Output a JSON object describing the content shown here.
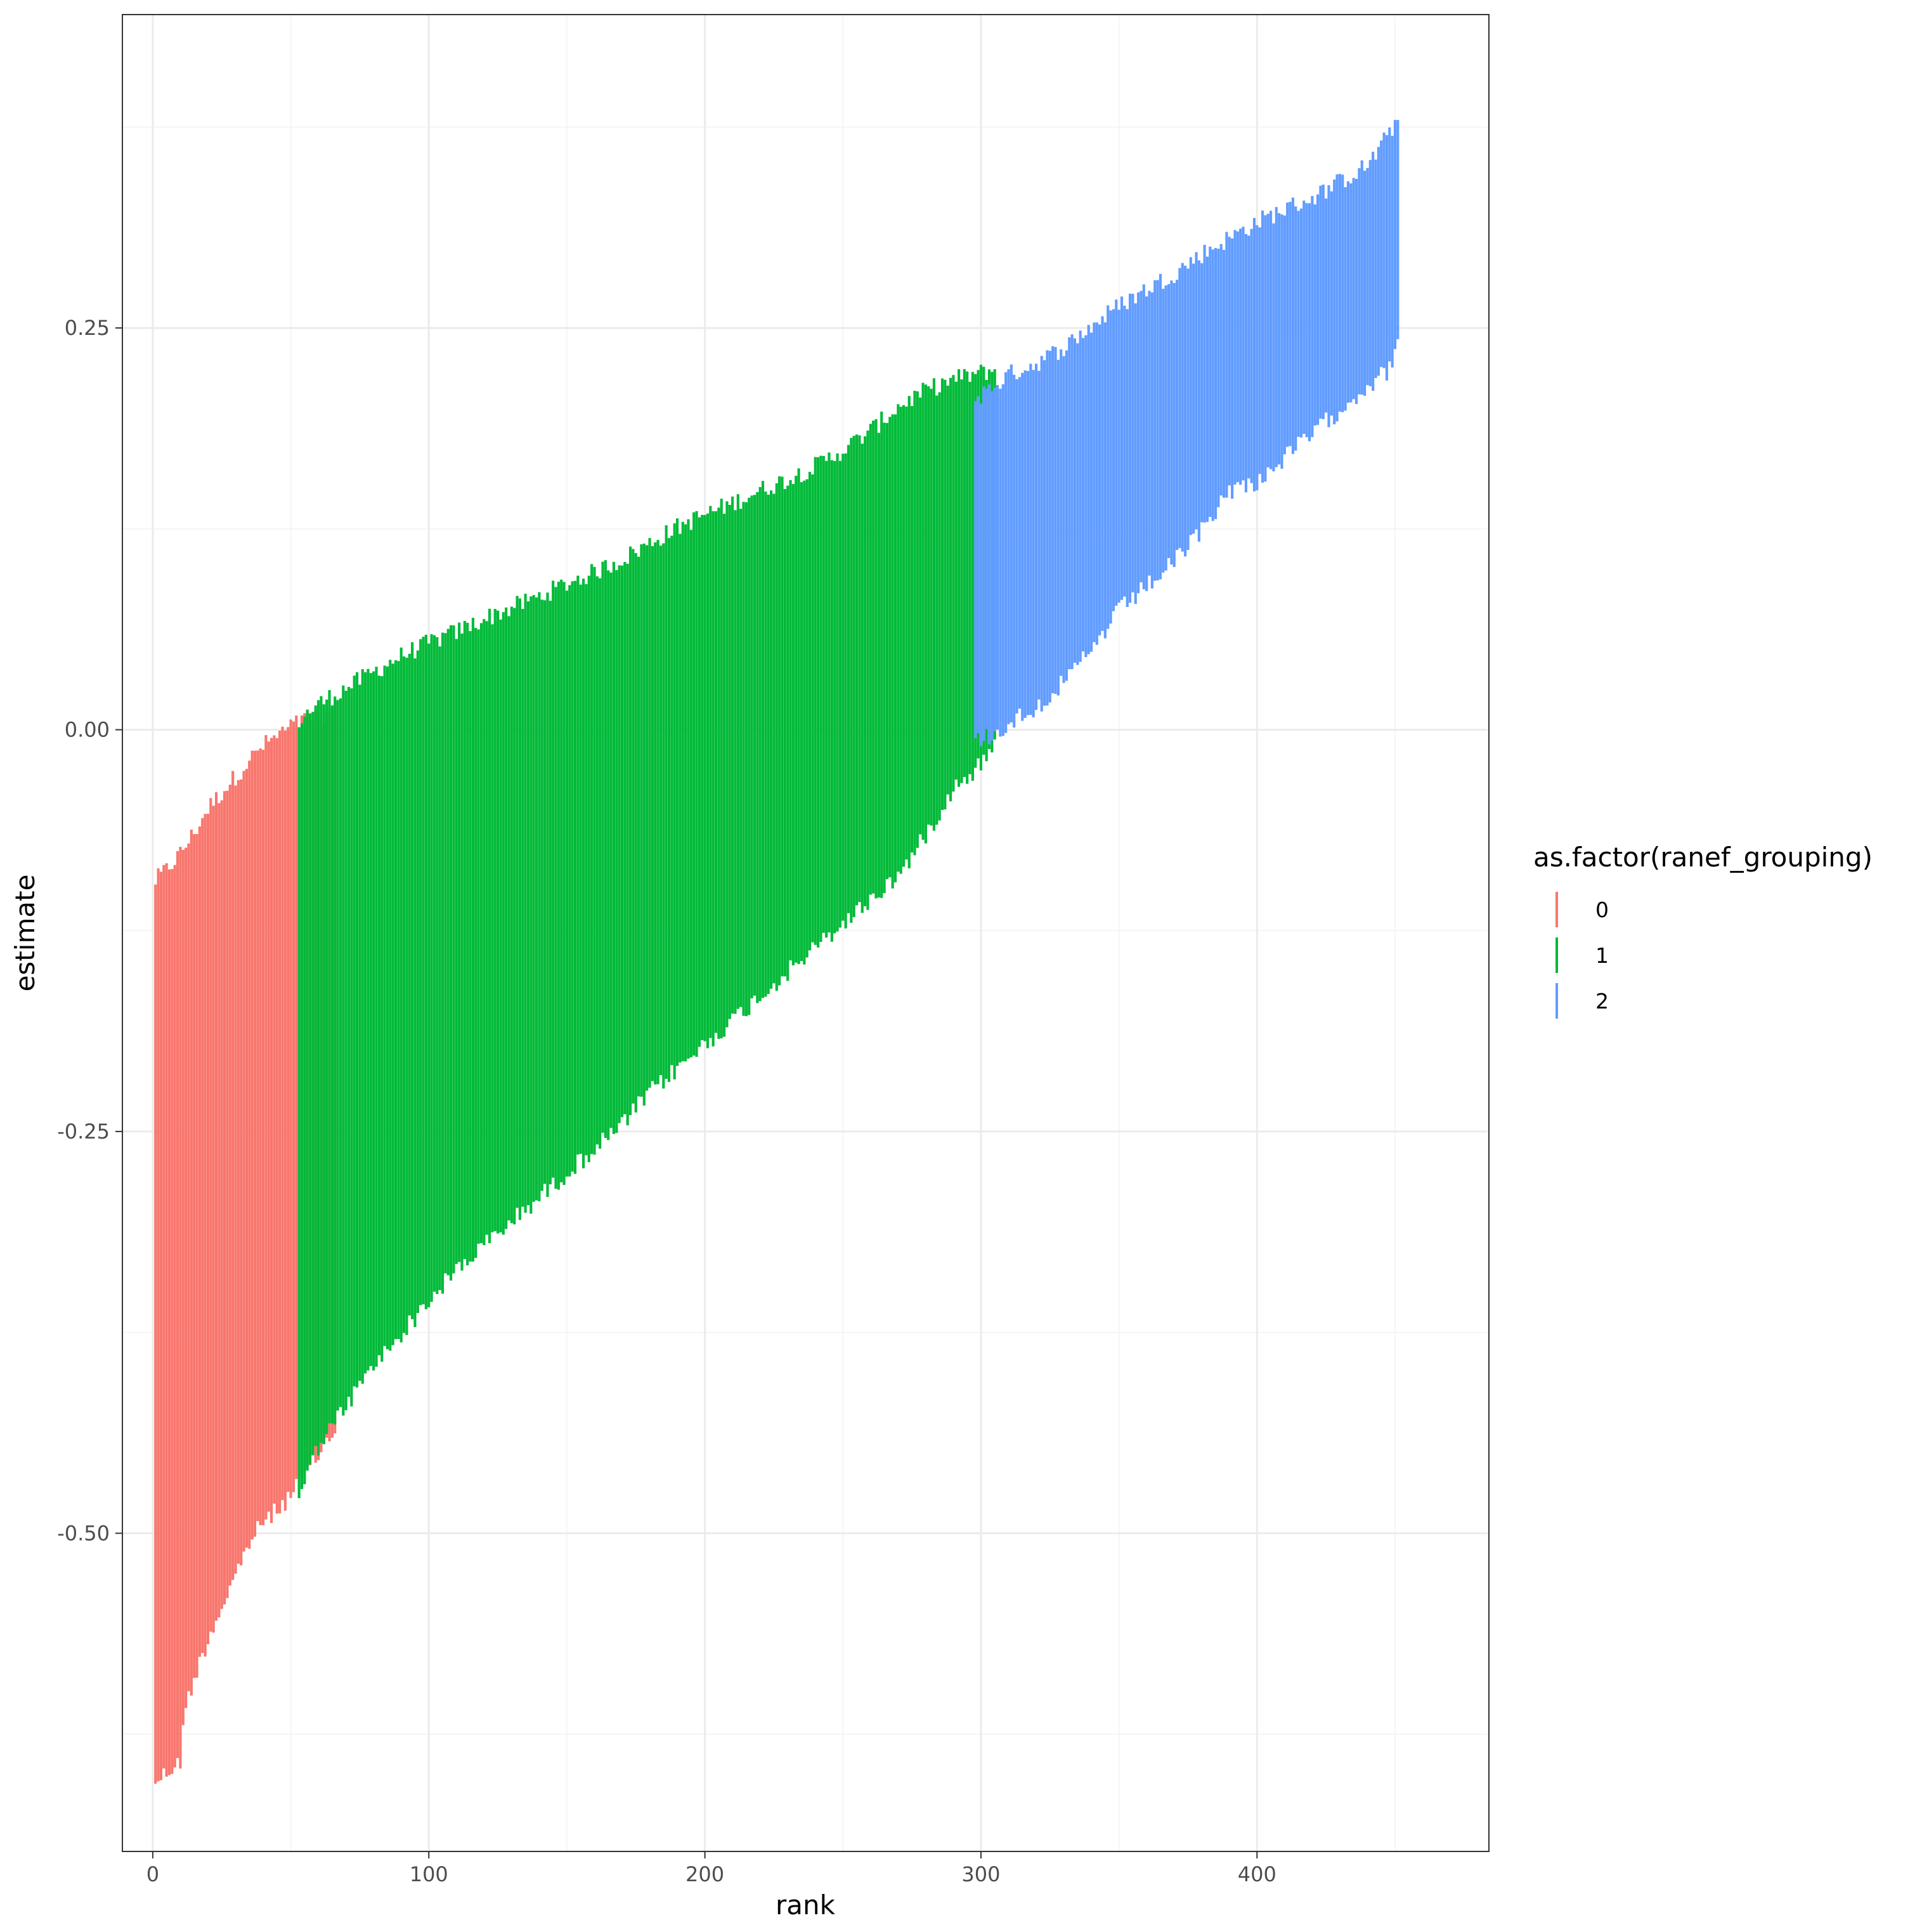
{
  "chart_data": {
    "type": "errorbar",
    "title": "",
    "xlabel": "rank",
    "ylabel": "estimate",
    "xlim": [
      -11,
      484
    ],
    "ylim": [
      -0.698,
      0.445
    ],
    "x_ticks": [
      0,
      100,
      200,
      300,
      400
    ],
    "x_tick_labels": [
      "0",
      "100",
      "200",
      "300",
      "400"
    ],
    "y_ticks": [
      -0.5,
      -0.25,
      0.0,
      0.25
    ],
    "y_tick_labels": [
      "-0.50",
      "-0.25",
      "0.00",
      "0.25"
    ],
    "y_minor_ticks": [
      -0.625,
      -0.375,
      -0.125,
      0.125,
      0.375
    ],
    "x_minor_ticks": [
      50,
      150,
      250,
      350,
      450
    ],
    "grid": true,
    "legend": {
      "title": "as.factor(ranef_grouping)",
      "placement": "right",
      "entries": [
        {
          "label": "0",
          "color": "#F8766D"
        },
        {
          "label": "1",
          "color": "#00BA38"
        },
        {
          "label": "2",
          "color": "#619CFF"
        }
      ]
    },
    "series": [
      {
        "group": "0",
        "color": "#F8766D",
        "x_range": [
          1,
          66
        ],
        "lower_profile": [
          [
            1,
            -0.648
          ],
          [
            5,
            -0.643
          ],
          [
            10,
            -0.636
          ],
          [
            12,
            -0.6
          ],
          [
            15,
            -0.585
          ],
          [
            20,
            -0.56
          ],
          [
            25,
            -0.54
          ],
          [
            30,
            -0.52
          ],
          [
            35,
            -0.5
          ],
          [
            40,
            -0.487
          ],
          [
            45,
            -0.48
          ],
          [
            50,
            -0.47
          ],
          [
            55,
            -0.458
          ],
          [
            60,
            -0.445
          ],
          [
            66,
            -0.43
          ]
        ],
        "upper_profile": [
          [
            1,
            -0.1
          ],
          [
            5,
            -0.093
          ],
          [
            10,
            -0.083
          ],
          [
            15,
            -0.07
          ],
          [
            20,
            -0.055
          ],
          [
            25,
            -0.045
          ],
          [
            30,
            -0.035
          ],
          [
            35,
            -0.025
          ],
          [
            40,
            -0.016
          ],
          [
            45,
            -0.01
          ],
          [
            50,
            -0.004
          ],
          [
            55,
            0.0
          ],
          [
            60,
            0.003
          ],
          [
            66,
            0.006
          ]
        ]
      },
      {
        "group": "1",
        "color": "#00BA38",
        "x_range": [
          53,
          305
        ],
        "lower_profile": [
          [
            53,
            -0.47
          ],
          [
            60,
            -0.44
          ],
          [
            70,
            -0.415
          ],
          [
            80,
            -0.39
          ],
          [
            90,
            -0.37
          ],
          [
            100,
            -0.35
          ],
          [
            110,
            -0.33
          ],
          [
            120,
            -0.315
          ],
          [
            130,
            -0.3
          ],
          [
            140,
            -0.285
          ],
          [
            150,
            -0.27
          ],
          [
            160,
            -0.255
          ],
          [
            170,
            -0.24
          ],
          [
            180,
            -0.22
          ],
          [
            190,
            -0.205
          ],
          [
            200,
            -0.19
          ],
          [
            210,
            -0.175
          ],
          [
            220,
            -0.16
          ],
          [
            230,
            -0.145
          ],
          [
            240,
            -0.13
          ],
          [
            250,
            -0.115
          ],
          [
            260,
            -0.1
          ],
          [
            270,
            -0.085
          ],
          [
            280,
            -0.06
          ],
          [
            290,
            -0.03
          ],
          [
            297,
            -0.02
          ],
          [
            305,
            -0.005
          ]
        ],
        "upper_profile": [
          [
            53,
            0.0
          ],
          [
            60,
            0.01
          ],
          [
            70,
            0.02
          ],
          [
            80,
            0.03
          ],
          [
            90,
            0.04
          ],
          [
            100,
            0.048
          ],
          [
            110,
            0.055
          ],
          [
            120,
            0.063
          ],
          [
            130,
            0.07
          ],
          [
            140,
            0.077
          ],
          [
            150,
            0.085
          ],
          [
            160,
            0.092
          ],
          [
            170,
            0.1
          ],
          [
            180,
            0.11
          ],
          [
            190,
            0.12
          ],
          [
            200,
            0.128
          ],
          [
            210,
            0.135
          ],
          [
            220,
            0.143
          ],
          [
            230,
            0.15
          ],
          [
            240,
            0.158
          ],
          [
            250,
            0.168
          ],
          [
            260,
            0.18
          ],
          [
            270,
            0.195
          ],
          [
            280,
            0.205
          ],
          [
            290,
            0.212
          ],
          [
            297,
            0.215
          ],
          [
            305,
            0.218
          ]
        ]
      },
      {
        "group": "2",
        "color": "#619CFF",
        "x_range": [
          298,
          451
        ],
        "lower_profile": [
          [
            298,
            0.0
          ],
          [
            305,
            0.003
          ],
          [
            310,
            0.01
          ],
          [
            320,
            0.02
          ],
          [
            330,
            0.035
          ],
          [
            340,
            0.055
          ],
          [
            350,
            0.08
          ],
          [
            360,
            0.095
          ],
          [
            370,
            0.11
          ],
          [
            380,
            0.13
          ],
          [
            390,
            0.155
          ],
          [
            400,
            0.16
          ],
          [
            410,
            0.175
          ],
          [
            420,
            0.19
          ],
          [
            430,
            0.205
          ],
          [
            440,
            0.22
          ],
          [
            448,
            0.23
          ],
          [
            451,
            0.25
          ]
        ],
        "upper_profile": [
          [
            298,
            0.2
          ],
          [
            305,
            0.208
          ],
          [
            310,
            0.215
          ],
          [
            320,
            0.222
          ],
          [
            330,
            0.232
          ],
          [
            340,
            0.245
          ],
          [
            350,
            0.258
          ],
          [
            360,
            0.268
          ],
          [
            370,
            0.278
          ],
          [
            380,
            0.29
          ],
          [
            390,
            0.3
          ],
          [
            400,
            0.31
          ],
          [
            410,
            0.318
          ],
          [
            420,
            0.325
          ],
          [
            430,
            0.335
          ],
          [
            440,
            0.345
          ],
          [
            448,
            0.365
          ],
          [
            451,
            0.375
          ]
        ]
      }
    ]
  }
}
